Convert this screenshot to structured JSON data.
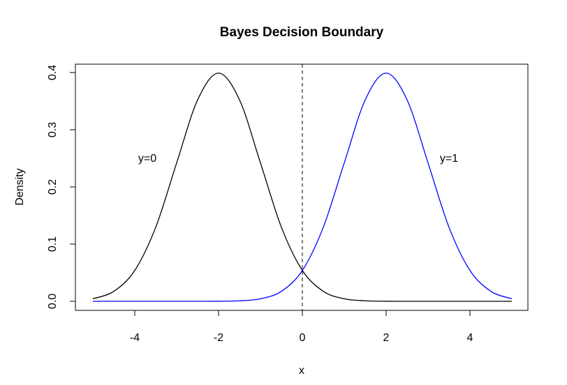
{
  "chart_data": {
    "type": "line",
    "title": "Bayes Decision Boundary",
    "xlabel": "x",
    "ylabel": "Density",
    "xlim": [
      -5,
      5
    ],
    "ylim": [
      0,
      0.4
    ],
    "x_ticks": [
      -4,
      -2,
      0,
      2,
      4
    ],
    "y_ticks": [
      0.0,
      0.1,
      0.2,
      0.3,
      0.4
    ],
    "x_tick_labels": [
      "-4",
      "-2",
      "0",
      "2",
      "4"
    ],
    "y_tick_labels": [
      "0.0",
      "0.1",
      "0.2",
      "0.3",
      "0.4"
    ],
    "grid": false,
    "series": [
      {
        "color": "#000000",
        "x": [
          -5,
          -4.5,
          -4,
          -3.5,
          -3,
          -2.5,
          -2,
          -1.5,
          -1,
          -0.5,
          0,
          0.5,
          1,
          1.5,
          2,
          2.5,
          3,
          3.5,
          4,
          4.5,
          5
        ],
        "y": [
          0.0044,
          0.0175,
          0.054,
          0.1295,
          0.242,
          0.3521,
          0.3989,
          0.3521,
          0.242,
          0.1295,
          0.054,
          0.0175,
          0.0044,
          0.0009,
          0.0001,
          0.0,
          0.0,
          0.0,
          0.0,
          0.0,
          0.0
        ]
      },
      {
        "color": "#0000ff",
        "x": [
          -5,
          -4.5,
          -4,
          -3.5,
          -3,
          -2.5,
          -2,
          -1.5,
          -1,
          -0.5,
          0,
          0.5,
          1,
          1.5,
          2,
          2.5,
          3,
          3.5,
          4,
          4.5,
          5
        ],
        "y": [
          0.0,
          0.0,
          0.0,
          0.0,
          0.0,
          0.0,
          0.0001,
          0.0009,
          0.0044,
          0.0175,
          0.054,
          0.1295,
          0.242,
          0.3521,
          0.3989,
          0.3521,
          0.242,
          0.1295,
          0.054,
          0.0175,
          0.0044
        ]
      }
    ],
    "vline": {
      "x": 0,
      "style": "dashed",
      "color": "#000000"
    },
    "annotations": [
      {
        "text": "y=0",
        "x": -3.7,
        "y": 0.25
      },
      {
        "text": "y=1",
        "x": 3.5,
        "y": 0.25
      }
    ]
  }
}
